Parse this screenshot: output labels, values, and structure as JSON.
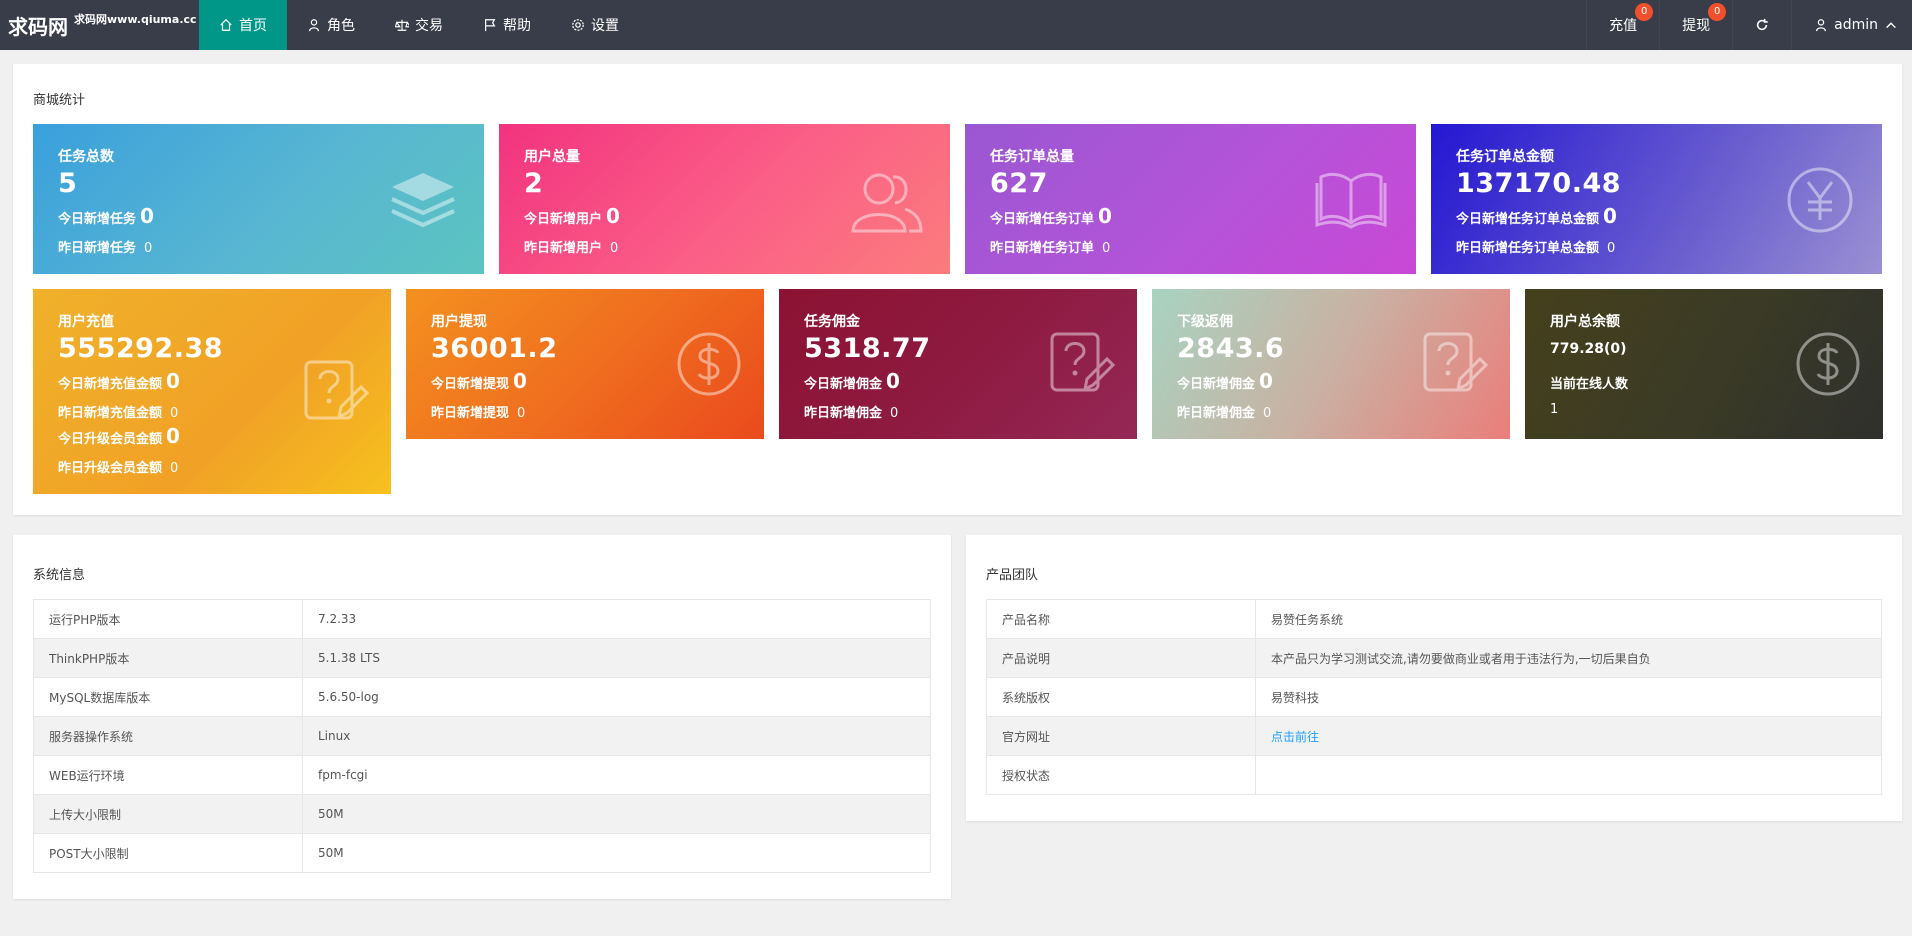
{
  "topbar": {
    "brand": "求码网",
    "site": "求码网www.qiuma.cc",
    "nav": [
      {
        "label": "首页",
        "icon": "home-icon"
      },
      {
        "label": "角色",
        "icon": "user-icon"
      },
      {
        "label": "交易",
        "icon": "scale-icon"
      },
      {
        "label": "帮助",
        "icon": "flag-icon"
      },
      {
        "label": "设置",
        "icon": "gear-icon"
      }
    ],
    "recharge_label": "充值",
    "recharge_badge": "0",
    "withdraw_label": "提现",
    "withdraw_badge": "0",
    "refresh_icon": "refresh-icon",
    "user_label": "admin"
  },
  "stats_panel": {
    "title": "商城统计",
    "cards": [
      {
        "title": "任务总数",
        "value": "5",
        "line1": "今日新增任务",
        "line1_val": "0",
        "line2": "昨日新增任务",
        "line2_val": "0",
        "icon": "layers-icon",
        "color": "#4aaed6"
      },
      {
        "title": "用户总量",
        "value": "2",
        "line1": "今日新增用户",
        "line1_val": "0",
        "line2": "昨日新增用户",
        "line2_val": "0",
        "icon": "users-icon",
        "color": "#f84a82"
      },
      {
        "title": "任务订单总量",
        "value": "627",
        "line1": "今日新增任务订单",
        "line1_val": "0",
        "line2": "昨日新增任务订单",
        "line2_val": "0",
        "icon": "book-icon",
        "color": "#b055d6"
      },
      {
        "title": "任务订单总金额",
        "value": "137170.48",
        "line1": "今日新增任务订单总金额",
        "line1_val": "0",
        "line2": "昨日新增任务订单总金额",
        "line2_val": "0",
        "icon": "yen-icon",
        "color": "#5a4fd0"
      },
      {
        "title": "用户充值",
        "value": "555292.38",
        "line1": "今日新增充值金额",
        "line1_val": "0",
        "line2": "昨日新增充值金额",
        "line2_val": "0",
        "line3": "今日升级会员金额",
        "line3_val": "0",
        "line4": "昨日升级会员金额",
        "line4_val": "0",
        "icon": "question-edit-icon",
        "color": "#f2ac26"
      },
      {
        "title": "用户提现",
        "value": "36001.2",
        "line1": "今日新增提现",
        "line1_val": "0",
        "line2": "昨日新增提现",
        "line2_val": "0",
        "icon": "dollar-icon",
        "color": "#ef6d1f"
      },
      {
        "title": "任务佣金",
        "value": "5318.77",
        "line1": "今日新增佣金",
        "line1_val": "0",
        "line2": "昨日新增佣金",
        "line2_val": "0",
        "icon": "question-edit-icon",
        "color": "#8e1a40"
      },
      {
        "title": "下级返佣",
        "value": "2843.6",
        "line1": "今日新增佣金",
        "line1_val": "0",
        "line2": "昨日新增佣金",
        "line2_val": "0",
        "icon": "question-edit-icon",
        "color": "#cbb1a3"
      },
      {
        "title": "用户总余额",
        "value": "779.28(0)",
        "line1": "当前在线人数",
        "line2_val": "1",
        "icon": "dollar-icon",
        "color": "#3a3a26"
      }
    ]
  },
  "system_panel": {
    "title": "系统信息",
    "rows": [
      {
        "k": "运行PHP版本",
        "v": "7.2.33"
      },
      {
        "k": "ThinkPHP版本",
        "v": "5.1.38 LTS"
      },
      {
        "k": "MySQL数据库版本",
        "v": "5.6.50-log"
      },
      {
        "k": "服务器操作系统",
        "v": "Linux"
      },
      {
        "k": "WEB运行环境",
        "v": "fpm-fcgi"
      },
      {
        "k": "上传大小限制",
        "v": "50M"
      },
      {
        "k": "POST大小限制",
        "v": "50M"
      }
    ]
  },
  "team_panel": {
    "title": "产品团队",
    "rows": [
      {
        "k": "产品名称",
        "v": "易赞任务系统"
      },
      {
        "k": "产品说明",
        "v": "本产品只为学习测试交流,请勿要做商业或者用于违法行为,一切后果自负"
      },
      {
        "k": "系统版权",
        "v": "易赞科技"
      },
      {
        "k": "官方网址",
        "v": "点击前往"
      },
      {
        "k": "授权状态",
        "v": ""
      }
    ]
  }
}
